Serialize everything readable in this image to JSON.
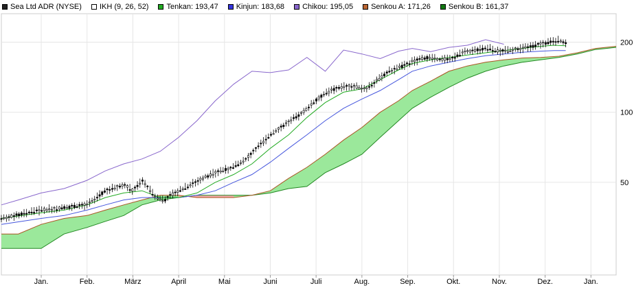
{
  "legend": [
    {
      "label": "Sea Ltd ADR (NYSE)",
      "color": "#222222"
    },
    {
      "label": "IKH (9, 26, 52)",
      "color": "#ffffff"
    },
    {
      "label": "Tenkan: 193,47",
      "color": "#22aa22"
    },
    {
      "label": "Kinjun: 183,68",
      "color": "#3333dd"
    },
    {
      "label": "Chikou: 195,05",
      "color": "#8866cc"
    },
    {
      "label": "Senkou A: 171,26",
      "color": "#bb6633"
    },
    {
      "label": "Senkou B: 161,37",
      "color": "#117711"
    }
  ],
  "colors": {
    "price": "#000000",
    "tenkan": "#22aa22",
    "kinjun": "#4455dd",
    "chikou": "#8866cc",
    "senkou_a": "#aa5522",
    "senkou_b": "#228822",
    "cloud_bull": "#9be89b",
    "cloud_bear": "#f4a8a8",
    "grid": "#e6e6e6"
  },
  "chart_data": {
    "type": "line",
    "subtype": "ichimoku-candlestick",
    "title": "Sea Ltd ADR (NYSE)",
    "y_scale": "log",
    "ylim": [
      20,
      265
    ],
    "y_ticks": [
      {
        "value": 200,
        "label": "200"
      },
      {
        "value": 100,
        "label": "100"
      },
      {
        "value": 50,
        "label": "50"
      }
    ],
    "x_range": [
      -0.87,
      12.55
    ],
    "x_ticks": [
      {
        "x": 0,
        "label": "Jan."
      },
      {
        "x": 1,
        "label": "Feb."
      },
      {
        "x": 2,
        "label": "März"
      },
      {
        "x": 3,
        "label": "April"
      },
      {
        "x": 4,
        "label": "Mai"
      },
      {
        "x": 5,
        "label": "Juni"
      },
      {
        "x": 6,
        "label": "Juli"
      },
      {
        "x": 7,
        "label": "Aug."
      },
      {
        "x": 8,
        "label": "Sep."
      },
      {
        "x": 9,
        "label": "Okt."
      },
      {
        "x": 10,
        "label": "Nov."
      },
      {
        "x": 11,
        "label": "Dez."
      },
      {
        "x": 12,
        "label": "Jan."
      }
    ],
    "grid": true,
    "legend_position": "top-left",
    "series": [
      {
        "name": "Sea Ltd ADR (NYSE)",
        "role": "price",
        "x": [
          -0.87,
          0,
          0.5,
          1,
          1.4,
          1.8,
          2.0,
          2.2,
          2.5,
          2.7,
          2.9,
          3.2,
          3.5,
          3.9,
          4.1,
          4.4,
          4.7,
          5.0,
          5.3,
          5.6,
          5.9,
          6.1,
          6.4,
          6.7,
          6.9,
          7.1,
          7.4,
          7.6,
          7.9,
          8.1,
          8.4,
          8.7,
          9.0,
          9.2,
          9.5,
          9.8,
          10.0,
          10.3,
          10.6,
          10.9,
          11.1,
          11.3,
          11.5
        ],
        "y": [
          35,
          38,
          39,
          40,
          46,
          49,
          46,
          51,
          43,
          42,
          45,
          48,
          52,
          56,
          57,
          61,
          70,
          80,
          88,
          96,
          108,
          117,
          126,
          130,
          128,
          127,
          140,
          150,
          158,
          165,
          172,
          168,
          171,
          180,
          185,
          188,
          182,
          186,
          190,
          196,
          200,
          204,
          196
        ]
      },
      {
        "name": "Tenkan",
        "role": "tenkan",
        "x": [
          -0.87,
          0,
          0.5,
          1,
          1.4,
          1.8,
          2.2,
          2.6,
          3.0,
          3.4,
          3.8,
          4.2,
          4.6,
          5.0,
          5.4,
          5.8,
          6.2,
          6.6,
          7.0,
          7.4,
          7.8,
          8.1,
          8.5,
          8.9,
          9.3,
          9.7,
          10.1,
          10.5,
          10.9,
          11.2,
          11.45
        ],
        "y": [
          35,
          37,
          38,
          40,
          43,
          45,
          46,
          43,
          43,
          45,
          50,
          54,
          60,
          70,
          80,
          95,
          110,
          122,
          126,
          138,
          152,
          162,
          168,
          172,
          176,
          180,
          184,
          188,
          192,
          194,
          193
        ]
      },
      {
        "name": "Kinjun",
        "role": "kinjun",
        "x": [
          -0.87,
          0,
          0.5,
          1,
          1.4,
          1.8,
          2.2,
          2.6,
          3.0,
          3.4,
          3.8,
          4.2,
          4.6,
          5.0,
          5.4,
          5.8,
          6.2,
          6.6,
          7.0,
          7.4,
          7.8,
          8.1,
          8.5,
          8.9,
          9.3,
          9.7,
          10.1,
          10.5,
          10.9,
          11.2,
          11.45
        ],
        "y": [
          33,
          35,
          36,
          38,
          40,
          42,
          43,
          43,
          43,
          44,
          46,
          50,
          54,
          61,
          70,
          80,
          92,
          104,
          114,
          124,
          138,
          150,
          158,
          164,
          170,
          175,
          178,
          181,
          183,
          184,
          184
        ]
      },
      {
        "name": "Chikou",
        "role": "chikou",
        "x": [
          -0.87,
          -0.5,
          0,
          0.5,
          1,
          1.4,
          1.8,
          2.2,
          2.6,
          3.0,
          3.4,
          3.8,
          4.2,
          4.6,
          5.0,
          5.4,
          5.8,
          6.2,
          6.6,
          7.0,
          7.4,
          7.8,
          8.1,
          8.5,
          8.9,
          9.3,
          9.7,
          10.1
        ],
        "y": [
          40,
          42,
          45,
          47,
          51,
          56,
          60,
          63,
          68,
          78,
          92,
          112,
          132,
          150,
          148,
          152,
          172,
          150,
          185,
          178,
          170,
          183,
          188,
          182,
          190,
          194,
          205,
          196
        ]
      },
      {
        "name": "Senkou A",
        "role": "senkou_a",
        "x": [
          -0.87,
          -0.5,
          0,
          0.5,
          1,
          1.4,
          1.8,
          2.2,
          2.6,
          3.0,
          3.4,
          3.8,
          4.2,
          4.6,
          5.0,
          5.4,
          5.8,
          6.2,
          6.6,
          7.0,
          7.4,
          7.8,
          8.1,
          8.5,
          8.9,
          9.3,
          9.7,
          10.1,
          10.5,
          10.9,
          11.3,
          11.7,
          12.1,
          12.55
        ],
        "y": [
          30,
          30,
          33,
          35,
          36,
          38,
          40,
          42,
          44,
          44,
          43,
          43,
          43,
          44,
          46,
          52,
          58,
          66,
          76,
          86,
          100,
          112,
          124,
          136,
          150,
          158,
          164,
          168,
          171,
          172,
          174,
          180,
          188,
          192
        ]
      },
      {
        "name": "Senkou B",
        "role": "senkou_b",
        "x": [
          -0.87,
          -0.5,
          0,
          0.5,
          1,
          1.4,
          1.8,
          2.2,
          2.6,
          3.0,
          3.4,
          3.8,
          4.2,
          4.6,
          5.0,
          5.4,
          5.8,
          6.2,
          6.6,
          7.0,
          7.4,
          7.8,
          8.1,
          8.5,
          8.9,
          9.3,
          9.7,
          10.1,
          10.5,
          10.9,
          11.3,
          11.7,
          12.1,
          12.55
        ],
        "y": [
          26,
          26,
          26,
          30,
          32,
          34,
          36,
          40,
          42,
          43,
          44,
          44,
          44,
          44,
          45,
          47,
          48,
          55,
          60,
          66,
          78,
          92,
          104,
          116,
          128,
          140,
          150,
          158,
          164,
          168,
          172,
          178,
          186,
          190
        ]
      }
    ]
  }
}
